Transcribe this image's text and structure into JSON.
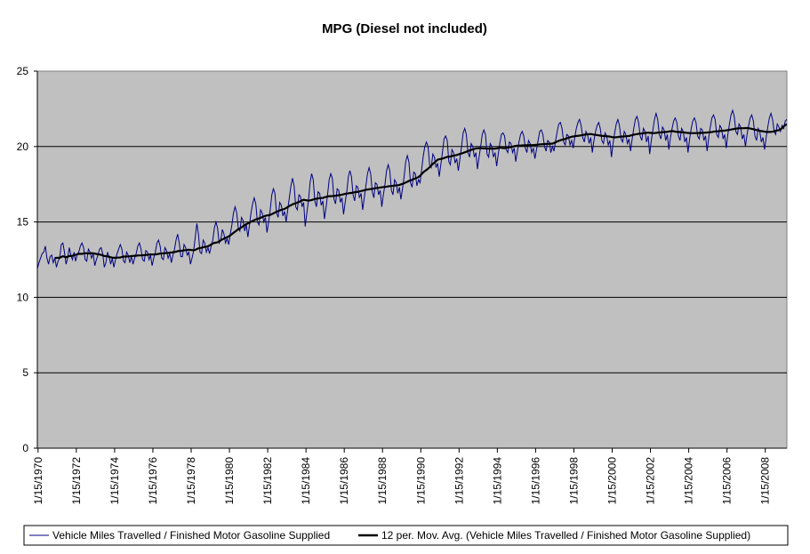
{
  "chart_data": {
    "type": "line",
    "title": "MPG (Diesel not included)",
    "xlabel": "",
    "ylabel": "",
    "ylim": [
      0,
      25
    ],
    "yticks": [
      "0",
      "5",
      "10",
      "15",
      "20",
      "25"
    ],
    "xlim": [
      "1970-01",
      "2009-03"
    ],
    "xticks": [
      "1/15/1970",
      "1/15/1972",
      "1/15/1974",
      "1/15/1976",
      "1/15/1978",
      "1/15/1980",
      "1/15/1982",
      "1/15/1984",
      "1/15/1986",
      "1/15/1988",
      "1/15/1990",
      "1/15/1992",
      "1/15/1994",
      "1/15/1996",
      "1/15/1998",
      "1/15/2000",
      "1/15/2002",
      "1/15/2004",
      "1/15/2006",
      "1/15/2008"
    ],
    "grid": "horizontal",
    "legend_position": "bottom",
    "colors": {
      "plot_bg": "#c0c0c0",
      "monthly": "#000080",
      "moving_avg": "#000000",
      "grid": "#000000"
    },
    "series": [
      {
        "name": "Vehicle Miles Travelled / Finished Motor Gasoline Supplied",
        "frequency": "monthly, values listed Jan through Dec for each year",
        "years": [
          1970,
          1971,
          1972,
          1973,
          1974,
          1975,
          1976,
          1977,
          1978,
          1979,
          1980,
          1981,
          1982,
          1983,
          1984,
          1985,
          1986,
          1987,
          1988,
          1989,
          1990,
          1991,
          1992,
          1993,
          1994,
          1995,
          1996,
          1997,
          1998,
          1999,
          2000,
          2001,
          2002,
          2003,
          2004,
          2005,
          2006,
          2007,
          2008,
          2009
        ],
        "values": [
          [
            11.9,
            12.3,
            12.6,
            12.9,
            13.0,
            13.4,
            12.6,
            12.2,
            12.7,
            12.8,
            12.3,
            12.6
          ],
          [
            12.0,
            12.4,
            12.6,
            13.5,
            13.6,
            13.0,
            12.2,
            12.6,
            13.3,
            12.8,
            12.5,
            13.0
          ],
          [
            12.4,
            12.8,
            13.0,
            13.4,
            13.6,
            13.3,
            12.5,
            12.4,
            13.2,
            13.0,
            12.6,
            12.9
          ],
          [
            12.1,
            12.5,
            12.8,
            13.2,
            13.3,
            12.9,
            12.0,
            12.3,
            13.0,
            12.7,
            12.2,
            12.6
          ],
          [
            12.0,
            12.5,
            12.9,
            13.2,
            13.5,
            13.2,
            12.4,
            12.3,
            13.0,
            12.8,
            12.3,
            12.7
          ],
          [
            12.2,
            12.6,
            12.9,
            13.4,
            13.6,
            13.2,
            12.5,
            12.4,
            13.1,
            13.0,
            12.5,
            12.8
          ],
          [
            12.1,
            12.6,
            13.0,
            13.6,
            13.8,
            13.4,
            12.6,
            12.5,
            13.3,
            13.1,
            12.6,
            12.9
          ],
          [
            12.3,
            12.8,
            13.2,
            13.8,
            14.2,
            13.6,
            12.7,
            12.7,
            13.5,
            13.3,
            12.8,
            13.0
          ],
          [
            12.2,
            12.6,
            13.1,
            14.0,
            14.9,
            14.2,
            13.0,
            12.9,
            13.8,
            13.6,
            13.0,
            13.3
          ],
          [
            12.9,
            13.4,
            13.8,
            14.6,
            15.0,
            14.6,
            13.6,
            13.8,
            14.5,
            14.2,
            13.6,
            13.9
          ],
          [
            13.5,
            14.2,
            14.8,
            15.6,
            16.0,
            15.6,
            14.6,
            14.4,
            15.3,
            15.1,
            14.4,
            14.8
          ],
          [
            14.0,
            14.8,
            15.6,
            16.2,
            16.6,
            16.2,
            15.0,
            14.8,
            15.8,
            15.6,
            15.0,
            15.3
          ],
          [
            14.3,
            15.0,
            15.8,
            16.8,
            17.2,
            16.9,
            15.6,
            15.3,
            16.3,
            16.1,
            15.4,
            15.7
          ],
          [
            15.0,
            15.8,
            16.6,
            17.4,
            17.9,
            17.4,
            16.0,
            15.8,
            16.8,
            16.7,
            16.0,
            16.3
          ],
          [
            14.7,
            15.6,
            16.4,
            17.6,
            18.2,
            17.8,
            16.4,
            16.0,
            17.0,
            16.9,
            16.1,
            16.4
          ],
          [
            15.2,
            15.9,
            16.8,
            17.8,
            18.2,
            17.9,
            16.5,
            16.2,
            17.2,
            17.1,
            16.3,
            16.6
          ],
          [
            15.5,
            16.3,
            17.0,
            18.0,
            18.4,
            18.0,
            16.8,
            16.4,
            17.4,
            17.3,
            16.6,
            16.9
          ],
          [
            15.8,
            16.6,
            17.4,
            18.2,
            18.6,
            18.2,
            17.0,
            16.6,
            17.6,
            17.5,
            16.8,
            17.1
          ],
          [
            16.0,
            16.8,
            17.5,
            18.4,
            18.8,
            18.4,
            17.1,
            16.8,
            17.8,
            17.6,
            16.9,
            17.3
          ],
          [
            16.5,
            17.2,
            18.0,
            19.0,
            19.4,
            19.0,
            17.6,
            17.3,
            18.3,
            18.2,
            17.4,
            17.8
          ],
          [
            17.6,
            18.5,
            19.4,
            20.0,
            20.3,
            20.0,
            18.8,
            18.6,
            19.5,
            19.3,
            18.6,
            18.9
          ],
          [
            18.0,
            18.8,
            19.6,
            20.5,
            20.7,
            20.4,
            19.0,
            18.8,
            19.8,
            19.6,
            18.9,
            19.2
          ],
          [
            18.4,
            19.2,
            20.0,
            20.9,
            21.2,
            20.8,
            19.6,
            19.3,
            20.2,
            20.0,
            19.3,
            19.6
          ],
          [
            18.5,
            19.3,
            20.0,
            20.8,
            21.1,
            20.8,
            19.5,
            19.3,
            20.2,
            20.0,
            19.3,
            19.6
          ],
          [
            18.7,
            19.5,
            20.2,
            20.8,
            20.9,
            20.7,
            19.8,
            19.6,
            20.3,
            20.2,
            19.6,
            19.9
          ],
          [
            19.0,
            19.7,
            20.3,
            20.8,
            21.0,
            20.7,
            19.9,
            19.6,
            20.4,
            20.2,
            19.6,
            19.9
          ],
          [
            19.2,
            19.8,
            20.4,
            21.0,
            21.1,
            20.8,
            20.0,
            19.7,
            20.4,
            20.3,
            19.6,
            20.0
          ],
          [
            19.7,
            20.4,
            21.0,
            21.5,
            21.6,
            21.2,
            20.3,
            20.1,
            20.8,
            20.7,
            20.1,
            20.4
          ],
          [
            19.9,
            20.6,
            21.2,
            21.6,
            21.8,
            21.4,
            20.6,
            20.3,
            21.0,
            20.8,
            20.2,
            20.6
          ],
          [
            19.6,
            20.4,
            21.0,
            21.4,
            21.6,
            21.2,
            20.4,
            20.2,
            20.9,
            20.7,
            20.1,
            20.4
          ],
          [
            19.3,
            20.2,
            20.9,
            21.5,
            21.8,
            21.4,
            20.5,
            20.3,
            21.0,
            20.8,
            20.2,
            20.5
          ],
          [
            19.7,
            20.5,
            21.2,
            21.8,
            22.0,
            21.6,
            20.7,
            20.4,
            21.2,
            21.0,
            20.3,
            20.7
          ],
          [
            19.5,
            20.4,
            21.1,
            21.8,
            22.2,
            21.8,
            20.8,
            20.5,
            21.3,
            21.1,
            20.4,
            20.8
          ],
          [
            19.8,
            20.6,
            21.2,
            21.7,
            21.9,
            21.6,
            20.7,
            20.4,
            21.2,
            21.0,
            20.3,
            20.6
          ],
          [
            19.6,
            20.5,
            21.2,
            21.7,
            21.9,
            21.6,
            20.7,
            20.5,
            21.2,
            21.1,
            20.4,
            20.7
          ],
          [
            19.7,
            20.6,
            21.3,
            21.9,
            22.1,
            21.8,
            20.8,
            20.6,
            21.4,
            21.2,
            20.5,
            20.8
          ],
          [
            19.9,
            20.8,
            21.5,
            22.1,
            22.4,
            22.0,
            21.0,
            20.8,
            21.5,
            21.3,
            20.5,
            20.8
          ],
          [
            20.0,
            20.8,
            21.4,
            21.9,
            22.1,
            21.7,
            20.7,
            20.4,
            21.2,
            21.0,
            20.3,
            20.6
          ],
          [
            19.8,
            20.6,
            21.3,
            21.9,
            22.2,
            21.8,
            21.0,
            20.8,
            21.5,
            21.3,
            21.0,
            21.4
          ],
          [
            21.2,
            21.7,
            21.8
          ]
        ]
      },
      {
        "name": "12 per. Mov. Avg. (Vehicle Miles Travelled / Finished Motor Gasoline Supplied)",
        "frequency": "computed from the monthly series as a trailing 12-month average"
      }
    ]
  }
}
